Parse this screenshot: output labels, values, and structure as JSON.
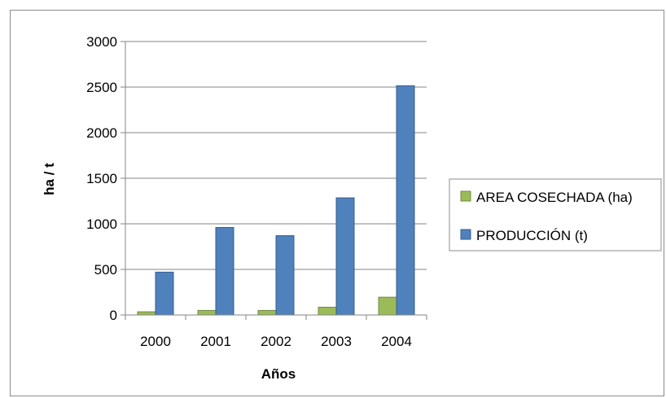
{
  "chart_data": {
    "type": "bar",
    "title": "",
    "xlabel": "Años",
    "ylabel": "ha / t",
    "categories": [
      "2000",
      "2001",
      "2002",
      "2003",
      "2004"
    ],
    "yticks": [
      "0",
      "500",
      "1000",
      "1500",
      "2000",
      "2500",
      "3000"
    ],
    "ylim": [
      0,
      3000
    ],
    "grid": true,
    "legend_position": "right",
    "series": [
      {
        "name": "AREA COSECHADA (ha)",
        "color": "#9bbb59",
        "stroke": "#71893f",
        "values": [
          35,
          50,
          50,
          85,
          195
        ]
      },
      {
        "name": "PRODUCCIÓN (t)",
        "color": "#4f81bd",
        "stroke": "#385d8a",
        "values": [
          470,
          960,
          870,
          1285,
          2515
        ]
      }
    ]
  }
}
